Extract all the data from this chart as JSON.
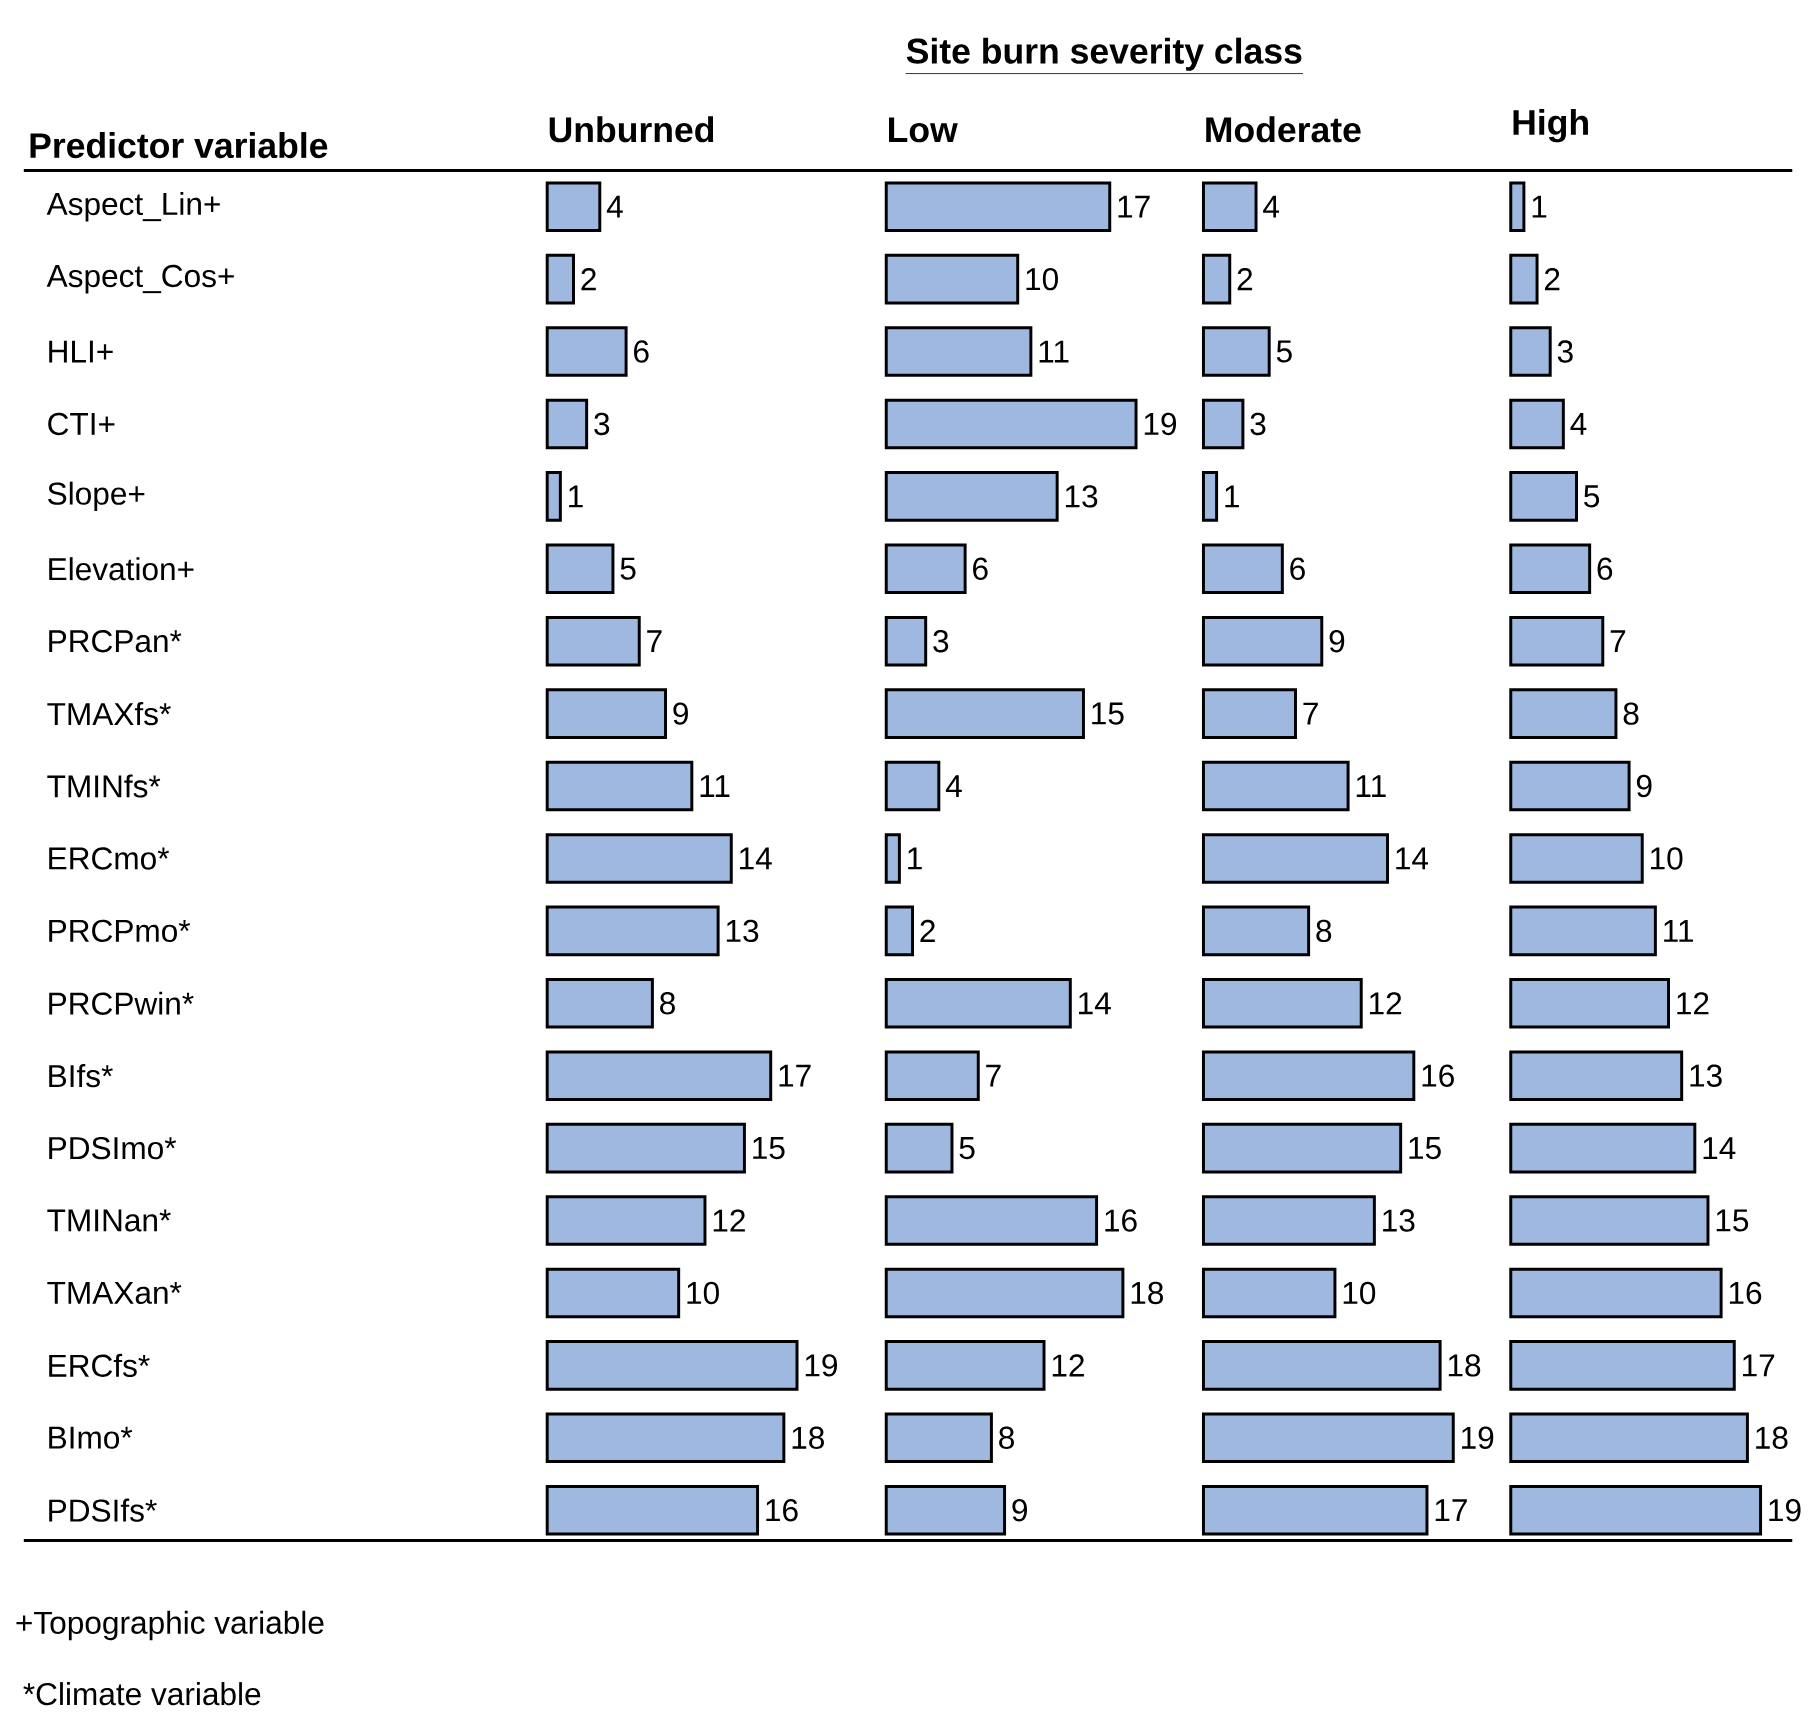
{
  "chart_data": [
    {
      "type": "bar",
      "orientation": "horizontal",
      "title": "Unburned",
      "ylabel": "Predictor variable",
      "categories": [
        "Aspect_Lin+",
        "Aspect_Cos+",
        "HLI+",
        "CTI+",
        "Slope+",
        "Elevation+",
        "PRCPan*",
        "TMAXfs*",
        "TMINfs*",
        "ERCmo*",
        "PRCPmo*",
        "PRCPwin*",
        "BIfs*",
        "PDSImo*",
        "TMINan*",
        "TMAXan*",
        "ERCfs*",
        "BImo*",
        "PDSIfs*"
      ],
      "color": "#9fb8e0",
      "values": [
        4,
        2,
        6,
        3,
        1,
        5,
        7,
        9,
        11,
        14,
        13,
        8,
        17,
        15,
        12,
        10,
        19,
        18,
        16
      ],
      "data_labels": true,
      "tick_labels": "y",
      "annotations": [
        "Site burn severity class",
        "+Topographic variable",
        "*Climate variable"
      ]
    },
    {
      "type": "bar",
      "orientation": "horizontal",
      "title": "Low",
      "color": "#9fb8e0",
      "values": [
        17,
        10,
        11,
        19,
        13,
        6,
        3,
        15,
        4,
        1,
        2,
        14,
        7,
        5,
        16,
        18,
        12,
        8,
        9
      ],
      "data_labels": true
    },
    {
      "type": "bar",
      "orientation": "horizontal",
      "title": "Moderate",
      "color": "#9fb8e0",
      "values": [
        4,
        2,
        5,
        3,
        1,
        6,
        9,
        7,
        11,
        14,
        8,
        12,
        16,
        15,
        13,
        10,
        18,
        19,
        17
      ],
      "data_labels": true
    },
    {
      "type": "bar",
      "orientation": "horizontal",
      "title": "High",
      "color": "#9fb8e0",
      "values": [
        1,
        2,
        3,
        4,
        5,
        6,
        7,
        8,
        9,
        10,
        11,
        12,
        13,
        14,
        15,
        16,
        17,
        18,
        19
      ],
      "data_labels": true
    }
  ]
}
